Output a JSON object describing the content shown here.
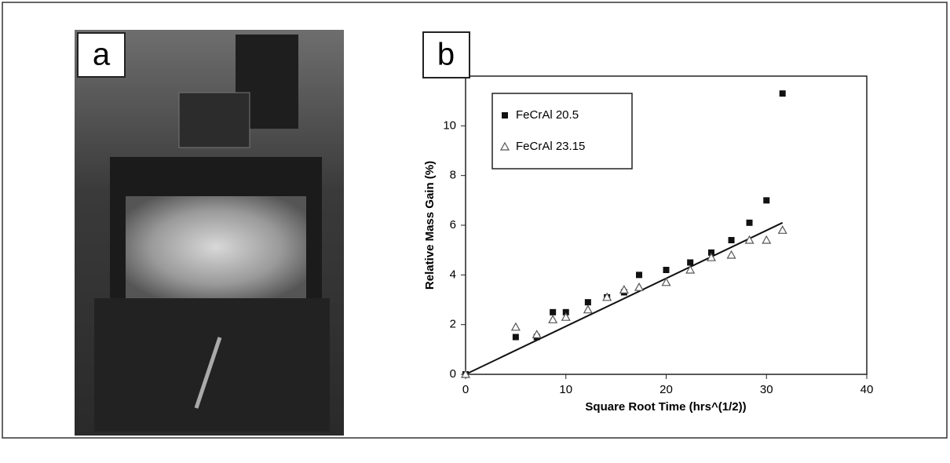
{
  "panels": {
    "a": "a",
    "b": "b"
  },
  "chart_data": {
    "type": "scatter",
    "xlabel": "Square Root Time (hrs^(1/2))",
    "ylabel": "Relative Mass Gain (%)",
    "xlim": [
      0,
      40
    ],
    "xticks": [
      0,
      10,
      20,
      30,
      40
    ],
    "ylim": [
      0,
      12
    ],
    "yticks": [
      0,
      2,
      4,
      6,
      8,
      10
    ],
    "legend": "upper-left",
    "series": [
      {
        "name": "FeCrAl 20.5",
        "color": "#111111",
        "marker": "square",
        "x": [
          0,
          5,
          7.1,
          8.7,
          10,
          12.2,
          14.1,
          15.8,
          17.3,
          20,
          22.4,
          24.5,
          26.5,
          28.3,
          30,
          31.6
        ],
        "values": [
          0,
          1.5,
          1.5,
          2.5,
          2.5,
          2.9,
          3.1,
          3.3,
          4.0,
          4.2,
          4.5,
          4.9,
          5.4,
          6.1,
          7.0,
          11.3
        ]
      },
      {
        "name": "FeCrAl 23.15",
        "color": "#555555",
        "marker": "triangle",
        "x": [
          0,
          5,
          7.1,
          8.7,
          10,
          12.2,
          14.1,
          15.8,
          17.3,
          20,
          22.4,
          24.5,
          26.5,
          28.3,
          30,
          31.6
        ],
        "values": [
          0,
          1.9,
          1.6,
          2.2,
          2.3,
          2.6,
          3.1,
          3.4,
          3.5,
          3.7,
          4.2,
          4.7,
          4.8,
          5.4,
          5.4,
          5.8
        ]
      }
    ],
    "trend_line": {
      "x": [
        0,
        31.6
      ],
      "values": [
        0,
        6.1
      ],
      "color": "#111111"
    }
  }
}
